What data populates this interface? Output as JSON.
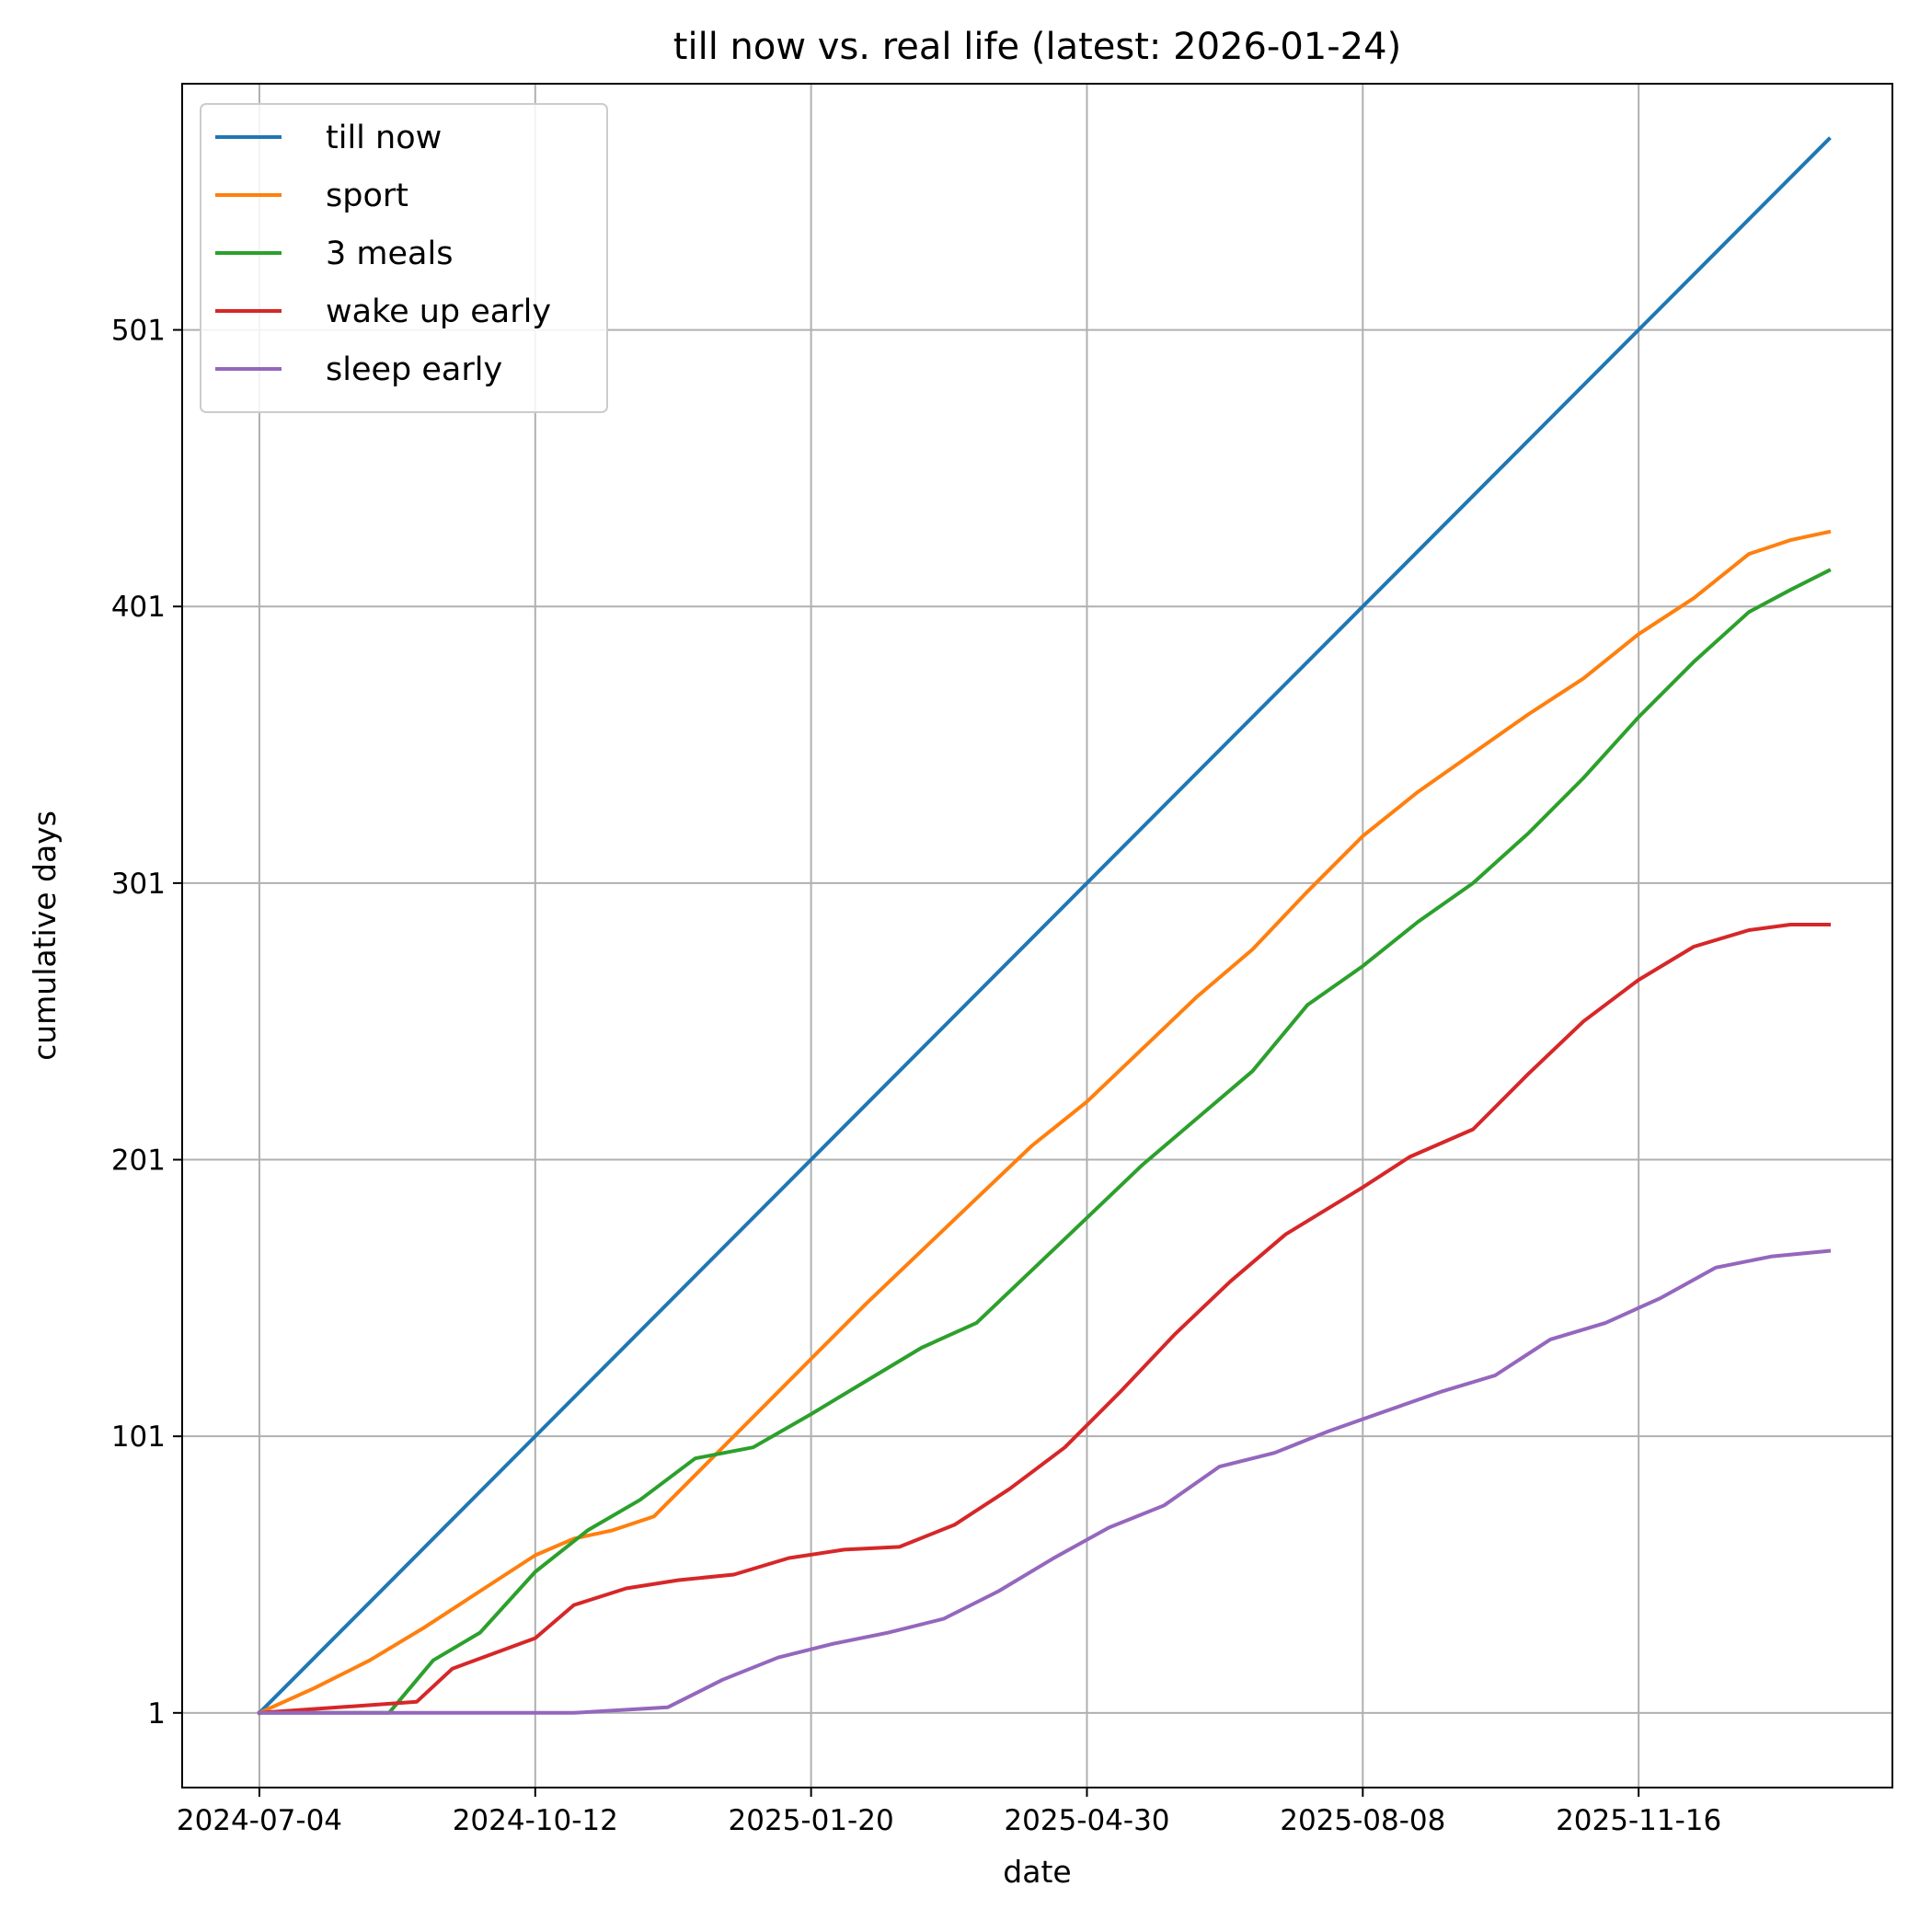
{
  "chart_data": {
    "type": "line",
    "title": "till now vs. real life (latest: 2026-01-24)",
    "xlabel": "date",
    "ylabel": "cumulative days",
    "x_ticks": [
      "2024-07-04",
      "2024-10-12",
      "2025-01-20",
      "2025-04-30",
      "2025-08-08",
      "2025-11-16"
    ],
    "y_ticks": [
      1,
      101,
      201,
      301,
      401,
      501
    ],
    "xlim": [
      "2024-06-06",
      "2026-02-16"
    ],
    "ylim": [
      -26,
      590
    ],
    "grid": true,
    "legend_position": "upper-left",
    "colors": {
      "till now": "#1f77b4",
      "sport": "#ff7f0e",
      "3 meals": "#2ca02c",
      "wake up early": "#d62728",
      "sleep early": "#9467bd"
    },
    "series": [
      {
        "name": "till now",
        "points": [
          [
            "2024-07-04",
            1
          ],
          [
            "2026-01-24",
            570
          ]
        ]
      },
      {
        "name": "sport",
        "points": [
          [
            "2024-07-04",
            1
          ],
          [
            "2024-07-24",
            10
          ],
          [
            "2024-08-13",
            20
          ],
          [
            "2024-09-02",
            32
          ],
          [
            "2024-09-22",
            45
          ],
          [
            "2024-10-12",
            58
          ],
          [
            "2024-10-26",
            64
          ],
          [
            "2024-11-09",
            67
          ],
          [
            "2024-11-24",
            72
          ],
          [
            "2024-12-09",
            87
          ],
          [
            "2024-12-24",
            102
          ],
          [
            "2025-01-08",
            117
          ],
          [
            "2025-01-20",
            129
          ],
          [
            "2025-02-09",
            149
          ],
          [
            "2025-03-01",
            168
          ],
          [
            "2025-03-21",
            187
          ],
          [
            "2025-04-10",
            206
          ],
          [
            "2025-04-30",
            222
          ],
          [
            "2025-05-20",
            241
          ],
          [
            "2025-06-09",
            260
          ],
          [
            "2025-06-29",
            277
          ],
          [
            "2025-07-19",
            298
          ],
          [
            "2025-08-08",
            318
          ],
          [
            "2025-08-28",
            334
          ],
          [
            "2025-09-17",
            348
          ],
          [
            "2025-10-07",
            362
          ],
          [
            "2025-10-27",
            375
          ],
          [
            "2025-11-16",
            391
          ],
          [
            "2025-12-06",
            404
          ],
          [
            "2025-12-26",
            420
          ],
          [
            "2026-01-10",
            425
          ],
          [
            "2026-01-24",
            428
          ]
        ]
      },
      {
        "name": "3 meals",
        "points": [
          [
            "2024-07-04",
            1
          ],
          [
            "2024-08-20",
            1
          ],
          [
            "2024-09-05",
            20
          ],
          [
            "2024-09-22",
            30
          ],
          [
            "2024-10-12",
            52
          ],
          [
            "2024-10-31",
            67
          ],
          [
            "2024-11-19",
            78
          ],
          [
            "2024-12-09",
            93
          ],
          [
            "2024-12-30",
            97
          ],
          [
            "2025-01-20",
            109
          ],
          [
            "2025-02-09",
            121
          ],
          [
            "2025-03-01",
            133
          ],
          [
            "2025-03-21",
            142
          ],
          [
            "2025-04-10",
            161
          ],
          [
            "2025-04-30",
            180
          ],
          [
            "2025-05-20",
            199
          ],
          [
            "2025-06-09",
            216
          ],
          [
            "2025-06-29",
            233
          ],
          [
            "2025-07-19",
            257
          ],
          [
            "2025-08-08",
            271
          ],
          [
            "2025-08-28",
            287
          ],
          [
            "2025-09-17",
            301
          ],
          [
            "2025-10-07",
            319
          ],
          [
            "2025-10-27",
            339
          ],
          [
            "2025-11-16",
            361
          ],
          [
            "2025-12-06",
            381
          ],
          [
            "2025-12-26",
            399
          ],
          [
            "2026-01-10",
            407
          ],
          [
            "2026-01-24",
            414
          ]
        ]
      },
      {
        "name": "wake up early",
        "points": [
          [
            "2024-07-04",
            1
          ],
          [
            "2024-08-30",
            5
          ],
          [
            "2024-09-12",
            17
          ],
          [
            "2024-10-12",
            28
          ],
          [
            "2024-10-26",
            40
          ],
          [
            "2024-11-14",
            46
          ],
          [
            "2024-12-03",
            49
          ],
          [
            "2024-12-23",
            51
          ],
          [
            "2025-01-12",
            57
          ],
          [
            "2025-02-01",
            60
          ],
          [
            "2025-02-21",
            61
          ],
          [
            "2025-03-13",
            69
          ],
          [
            "2025-04-02",
            82
          ],
          [
            "2025-04-22",
            97
          ],
          [
            "2025-05-12",
            117
          ],
          [
            "2025-06-01",
            138
          ],
          [
            "2025-06-21",
            157
          ],
          [
            "2025-07-11",
            174
          ],
          [
            "2025-08-08",
            191
          ],
          [
            "2025-08-25",
            202
          ],
          [
            "2025-09-17",
            212
          ],
          [
            "2025-10-07",
            232
          ],
          [
            "2025-10-27",
            251
          ],
          [
            "2025-11-16",
            266
          ],
          [
            "2025-12-06",
            278
          ],
          [
            "2025-12-26",
            284
          ],
          [
            "2026-01-10",
            286
          ],
          [
            "2026-01-24",
            286
          ]
        ]
      },
      {
        "name": "sleep early",
        "points": [
          [
            "2024-07-04",
            1
          ],
          [
            "2024-10-26",
            1
          ],
          [
            "2024-11-29",
            3
          ],
          [
            "2024-12-19",
            13
          ],
          [
            "2025-01-08",
            21
          ],
          [
            "2025-01-28",
            26
          ],
          [
            "2025-02-17",
            30
          ],
          [
            "2025-03-09",
            35
          ],
          [
            "2025-03-29",
            45
          ],
          [
            "2025-04-18",
            57
          ],
          [
            "2025-05-08",
            68
          ],
          [
            "2025-05-28",
            76
          ],
          [
            "2025-06-17",
            90
          ],
          [
            "2025-07-07",
            95
          ],
          [
            "2025-07-27",
            103
          ],
          [
            "2025-08-16",
            110
          ],
          [
            "2025-09-05",
            117
          ],
          [
            "2025-09-25",
            123
          ],
          [
            "2025-10-15",
            136
          ],
          [
            "2025-11-04",
            142
          ],
          [
            "2025-11-24",
            151
          ],
          [
            "2025-12-14",
            162
          ],
          [
            "2026-01-03",
            166
          ],
          [
            "2026-01-24",
            168
          ]
        ]
      }
    ]
  }
}
